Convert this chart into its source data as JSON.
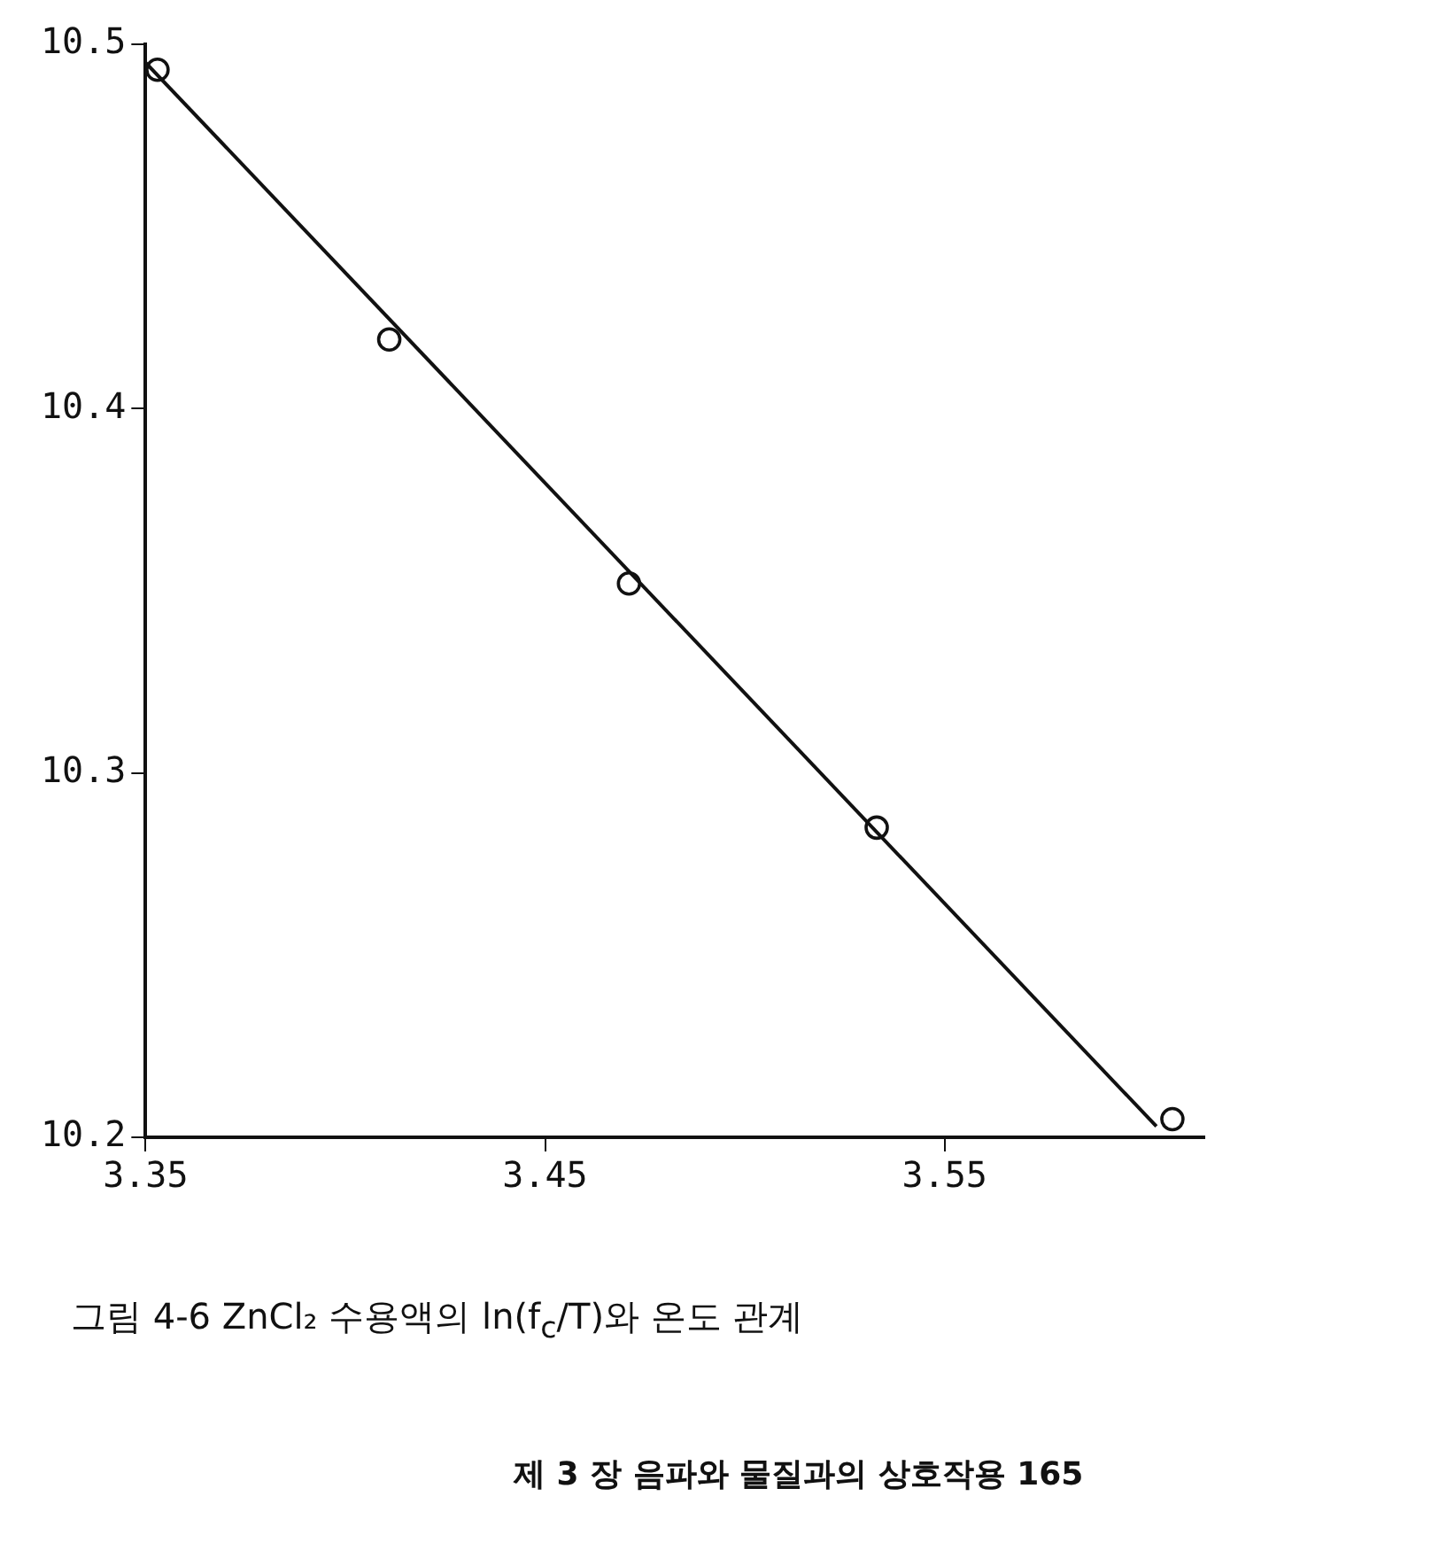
{
  "chart_data": {
    "type": "scatter",
    "title": "그림 4-6  ZnCl₂ 수용액의 ln(f$_{c}$/T)와 온도 관계",
    "annotations": [
      "제 3 장  음파와 물질과의 상호작용  165"
    ],
    "series": [
      {
        "type": "scatter",
        "color": "#111111",
        "x": [
          3.353,
          3.411,
          3.471,
          3.533,
          3.607
        ],
        "values": [
          10.493,
          10.419,
          10.352,
          10.285,
          10.205
        ],
        "marker": "circle"
      },
      {
        "type": "line",
        "color": "#111111",
        "x": [
          3.35,
          3.603
        ],
        "values": [
          10.495,
          10.203
        ],
        "marker": "none",
        "line_style": "solid"
      }
    ],
    "xlim": [
      3.35,
      3.615
    ],
    "xticks": [
      3.35,
      3.45,
      3.55
    ],
    "ylim": [
      10.2,
      10.5
    ],
    "yticks": [
      10.2,
      10.3,
      10.4,
      10.5
    ],
    "grid": false,
    "legend": false
  }
}
